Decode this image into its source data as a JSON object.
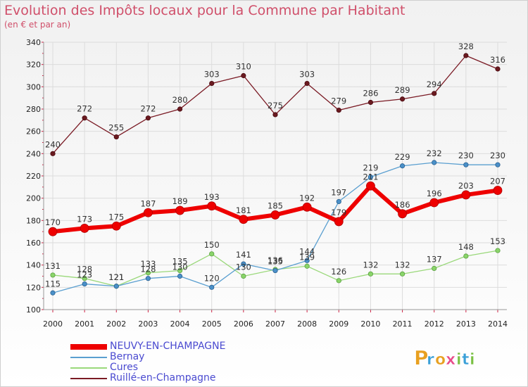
{
  "header": {
    "title": "Evolution des Impôts locaux pour la Commune par Habitant",
    "subtitle": "(en € et par an)"
  },
  "logo": {
    "text": "Proxiti",
    "colors": [
      "#e8a020",
      "#3aa0d8",
      "#e84a8a",
      "#7ac043"
    ]
  },
  "chart_data": {
    "type": "line",
    "title": "Evolution des Impôts locaux pour la Commune par Habitant",
    "subtitle": "(en € et par an)",
    "xlabel": "",
    "ylabel": "",
    "x": [
      2000,
      2001,
      2002,
      2003,
      2004,
      2005,
      2006,
      2007,
      2008,
      2009,
      2010,
      2011,
      2012,
      2013,
      2014
    ],
    "ylim": [
      100,
      340
    ],
    "yticks": [
      100,
      120,
      140,
      160,
      180,
      200,
      220,
      240,
      260,
      280,
      300,
      320,
      340
    ],
    "grid": true,
    "legend_position": "bottom-left",
    "series": [
      {
        "name": "NEUVY-EN-CHAMPAGNE",
        "color": "#ee0000",
        "values": [
          170,
          173,
          175,
          187,
          189,
          193,
          181,
          185,
          192,
          179,
          211,
          186,
          196,
          203,
          207
        ]
      },
      {
        "name": "Bernay",
        "color": "#5a9fd0",
        "values": [
          115,
          123,
          121,
          128,
          130,
          120,
          141,
          135,
          144,
          197,
          219,
          229,
          232,
          230,
          230
        ]
      },
      {
        "name": "Cures",
        "color": "#9ad87a",
        "values": [
          131,
          128,
          121,
          133,
          135,
          150,
          130,
          136,
          139,
          126,
          132,
          132,
          137,
          148,
          153
        ]
      },
      {
        "name": "Ruillé-en-Champagne",
        "color": "#7a1a24",
        "values": [
          240,
          272,
          255,
          272,
          280,
          303,
          310,
          275,
          303,
          279,
          286,
          289,
          294,
          328,
          316
        ]
      }
    ]
  }
}
